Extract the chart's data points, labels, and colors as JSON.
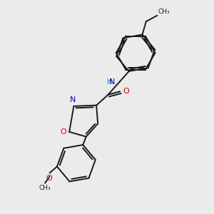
{
  "background_color": "#ebebeb",
  "bond_color": "#1a1a1a",
  "N_color": "#0000cd",
  "O_color": "#dd0000",
  "NH_color": "#2e8b8b",
  "text_color": "#1a1a1a",
  "figsize": [
    3.0,
    3.0
  ],
  "dpi": 100,
  "xlim": [
    0,
    10
  ],
  "ylim": [
    0,
    10
  ]
}
